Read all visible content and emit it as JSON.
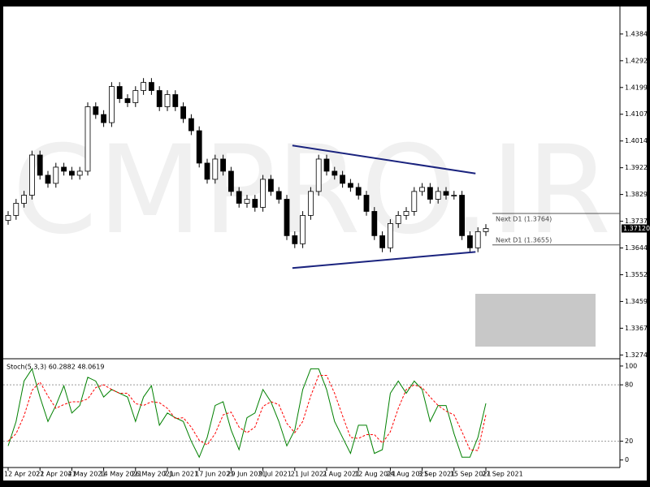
{
  "chart_data": [
    {
      "type": "candlestick",
      "watermark": "CMPRO.IR",
      "categories": [
        "12 Apr 2021",
        null,
        null,
        null,
        "22 Apr 2021",
        null,
        null,
        null,
        "4 May 2021",
        null,
        null,
        null,
        "14 May 2021",
        null,
        null,
        null,
        "26 May 2021",
        null,
        null,
        null,
        "7 Jun 2021",
        null,
        null,
        null,
        "17 Jun 2021",
        null,
        null,
        null,
        "29 Jun 2021",
        null,
        null,
        null,
        "9 Jul 2021",
        null,
        null,
        null,
        "21 Jul 2021",
        null,
        null,
        null,
        "2 Aug 2021",
        null,
        null,
        null,
        "12 Aug 2021",
        null,
        null,
        null,
        "24 Aug 2021",
        null,
        null,
        null,
        "3 Sep 2021",
        null,
        null,
        null,
        "15 Sep 2021",
        null,
        null,
        null,
        "27 Sep 2021"
      ],
      "open": [
        1.374,
        1.3757,
        1.3799,
        1.3827,
        1.3966,
        1.3896,
        1.3868,
        1.3924,
        1.391,
        1.3896,
        1.391,
        1.4133,
        1.4106,
        1.4078,
        1.4203,
        1.4161,
        1.4147,
        1.4189,
        1.4217,
        1.4189,
        1.4133,
        1.4175,
        1.4133,
        1.4092,
        1.405,
        1.3938,
        1.3882,
        1.3952,
        1.391,
        1.384,
        1.3799,
        1.3813,
        1.3785,
        1.3882,
        1.384,
        1.3813,
        1.3687,
        1.3659,
        1.3757,
        1.384,
        1.3952,
        1.391,
        1.3896,
        1.3868,
        1.3854,
        1.3827,
        1.3771,
        1.3687,
        1.3645,
        1.3729,
        1.3757,
        1.3771,
        1.384,
        1.3854,
        1.3813,
        1.384,
        1.3827,
        1.3827,
        1.3687,
        1.3645,
        1.3701
      ],
      "high": [
        1.3772,
        1.3814,
        1.3842,
        1.3981,
        1.3981,
        1.3911,
        1.3939,
        1.3939,
        1.3925,
        1.3925,
        1.4148,
        1.4148,
        1.4121,
        1.4218,
        1.4218,
        1.4176,
        1.4204,
        1.4232,
        1.4232,
        1.4204,
        1.419,
        1.419,
        1.4148,
        1.4107,
        1.4065,
        1.3953,
        1.3967,
        1.3967,
        1.3925,
        1.3855,
        1.3828,
        1.3828,
        1.3897,
        1.3897,
        1.3855,
        1.3828,
        1.3702,
        1.3772,
        1.3855,
        1.3967,
        1.3967,
        1.3925,
        1.3911,
        1.3883,
        1.3869,
        1.3842,
        1.3786,
        1.3702,
        1.3744,
        1.3772,
        1.3786,
        1.3855,
        1.3869,
        1.3869,
        1.3855,
        1.3855,
        1.3842,
        1.3842,
        1.3702,
        1.3716,
        1.3727
      ],
      "low": [
        1.3725,
        1.3742,
        1.3784,
        1.3812,
        1.3881,
        1.3853,
        1.3853,
        1.3895,
        1.3881,
        1.3881,
        1.3895,
        1.4091,
        1.4063,
        1.4063,
        1.4146,
        1.4132,
        1.4132,
        1.4174,
        1.4174,
        1.4118,
        1.4118,
        1.4118,
        1.4077,
        1.4035,
        1.3923,
        1.3867,
        1.3867,
        1.3895,
        1.3825,
        1.3784,
        1.3784,
        1.377,
        1.377,
        1.3825,
        1.3798,
        1.3672,
        1.3644,
        1.3644,
        1.3742,
        1.3825,
        1.3895,
        1.3881,
        1.3853,
        1.3839,
        1.3812,
        1.3756,
        1.3672,
        1.363,
        1.363,
        1.3714,
        1.3742,
        1.3756,
        1.3825,
        1.3798,
        1.3798,
        1.3812,
        1.3812,
        1.3672,
        1.363,
        1.363,
        1.3686
      ],
      "close": [
        1.3757,
        1.3799,
        1.3827,
        1.3966,
        1.3896,
        1.3868,
        1.3924,
        1.391,
        1.3896,
        1.391,
        1.4133,
        1.4106,
        1.4078,
        1.4203,
        1.4161,
        1.4147,
        1.4189,
        1.4217,
        1.4189,
        1.4133,
        1.4175,
        1.4133,
        1.4092,
        1.405,
        1.3938,
        1.3882,
        1.3952,
        1.391,
        1.384,
        1.3799,
        1.3813,
        1.3785,
        1.3882,
        1.384,
        1.3813,
        1.3687,
        1.3659,
        1.3757,
        1.384,
        1.3952,
        1.391,
        1.3896,
        1.3868,
        1.3854,
        1.3827,
        1.3771,
        1.3687,
        1.3645,
        1.3729,
        1.3757,
        1.3771,
        1.384,
        1.3854,
        1.3813,
        1.384,
        1.3827,
        1.3827,
        1.3687,
        1.3645,
        1.3701,
        1.3712
      ],
      "color": "#000000",
      "ylim": [
        1.3267,
        1.4474
      ],
      "yticks": [
        1.43845,
        {
          "value": 1.4292,
          "label": "1.42920"
        },
        1.41995,
        {
          "value": 1.4107,
          "label": "1.41070"
        },
        1.40145,
        {
          "value": 1.3922,
          "label": "1.39220"
        },
        1.38295,
        {
          "value": 1.3737,
          "label": "1.37370"
        },
        1.36445,
        {
          "value": 1.3552,
          "label": "1.35520"
        },
        1.34595,
        {
          "value": 1.3367,
          "label": "1.33670"
        },
        1.32745
      ],
      "last_price": {
        "value": 1.3712,
        "label": "1.37120"
      },
      "levels": [
        {
          "value": 1.3764,
          "label": "Next D1 (1.3764)"
        },
        {
          "value": 1.3655,
          "label": "Next D1 (1.3655)"
        }
      ],
      "trendlines": [
        {
          "color": "#1a237e",
          "x": [
            35.7,
            58.7
          ],
          "y": [
            1.3999,
            1.3902
          ]
        },
        {
          "color": "#1a237e",
          "x": [
            35.7,
            58.7
          ],
          "y": [
            1.3575,
            1.3631
          ]
        }
      ]
    },
    {
      "type": "line",
      "title": "Stoch(5,3,3) 60.2882 48.0619",
      "series": [
        {
          "color": "#008000",
          "dashed": false,
          "values": [
            15,
            41,
            84,
            97,
            67,
            41,
            58,
            79,
            50,
            58,
            88,
            84,
            67,
            75,
            71,
            67,
            41,
            67,
            79,
            37,
            50,
            45,
            41,
            20,
            3,
            24,
            58,
            62,
            32,
            11,
            45,
            50,
            75,
            62,
            41,
            15,
            32,
            75,
            97,
            97,
            75,
            41,
            24,
            7,
            37,
            37,
            7,
            11,
            71,
            84,
            71,
            84,
            75,
            41,
            58,
            58,
            28,
            3,
            3,
            24,
            60.2882
          ]
        },
        {
          "color": "#ff0000",
          "dashed": true,
          "values": [
            20,
            28,
            47,
            74,
            83,
            68,
            55,
            59,
            62,
            62,
            65,
            77,
            80,
            75,
            71,
            71,
            60,
            58,
            62,
            61,
            55,
            44,
            45,
            35,
            21,
            16,
            28,
            48,
            51,
            35,
            29,
            35,
            57,
            62,
            59,
            39,
            29,
            41,
            68,
            90,
            90,
            71,
            47,
            24,
            23,
            27,
            27,
            18,
            30,
            55,
            75,
            80,
            77,
            67,
            58,
            52,
            48,
            30,
            11,
            10,
            48.0619
          ]
        }
      ],
      "ylim": [
        -8,
        106
      ],
      "yticks": [
        0,
        20,
        80,
        100
      ],
      "levels": [
        20,
        80
      ]
    }
  ]
}
